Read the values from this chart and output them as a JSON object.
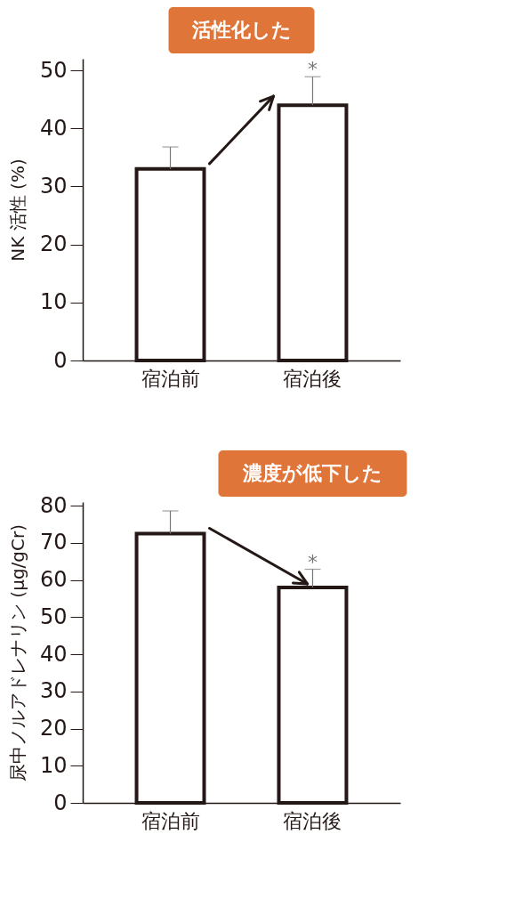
{
  "chart_data": [
    {
      "type": "bar",
      "categories": [
        "宿泊前",
        "宿泊後"
      ],
      "values": [
        33,
        44
      ],
      "errors": [
        [
          33,
          36.8
        ],
        [
          44,
          48.9
        ]
      ],
      "color": "#ffffff",
      "ylabel": "NK 活性 (%)",
      "ylim": [
        0,
        52
      ],
      "yticks": [
        0,
        10,
        20,
        30,
        40,
        50
      ],
      "annotations": [
        "活性化した",
        {
          "text": "*",
          "x": "宿泊後",
          "y": 48.9
        }
      ]
    },
    {
      "type": "bar",
      "categories": [
        "宿泊前",
        "宿泊後"
      ],
      "values": [
        72.5,
        58
      ],
      "errors": [
        [
          72.5,
          78.6
        ],
        [
          58,
          62.9
        ]
      ],
      "color": "#ffffff",
      "ylabel": "尿中ノルアドレナリン (μg/gCr)",
      "ylim": [
        0,
        81
      ],
      "yticks": [
        0,
        10,
        20,
        30,
        40,
        50,
        60,
        70,
        80
      ],
      "annotations": [
        "濃度が低下した",
        {
          "text": "*",
          "x": "宿泊後",
          "y": 62.9
        }
      ]
    }
  ]
}
